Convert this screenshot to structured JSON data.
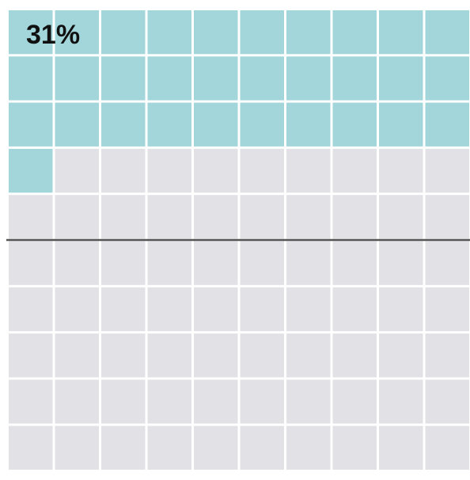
{
  "chart_data": {
    "type": "waffle",
    "rows": 10,
    "columns": 10,
    "value": 31,
    "total": 100,
    "label": "31%",
    "reference_line_after_row": 5,
    "colors": {
      "filled": "#a3d6da",
      "empty": "#e1e1e6",
      "gap": "#ffffff",
      "reference_line": "#555555",
      "label": "#111111"
    }
  }
}
